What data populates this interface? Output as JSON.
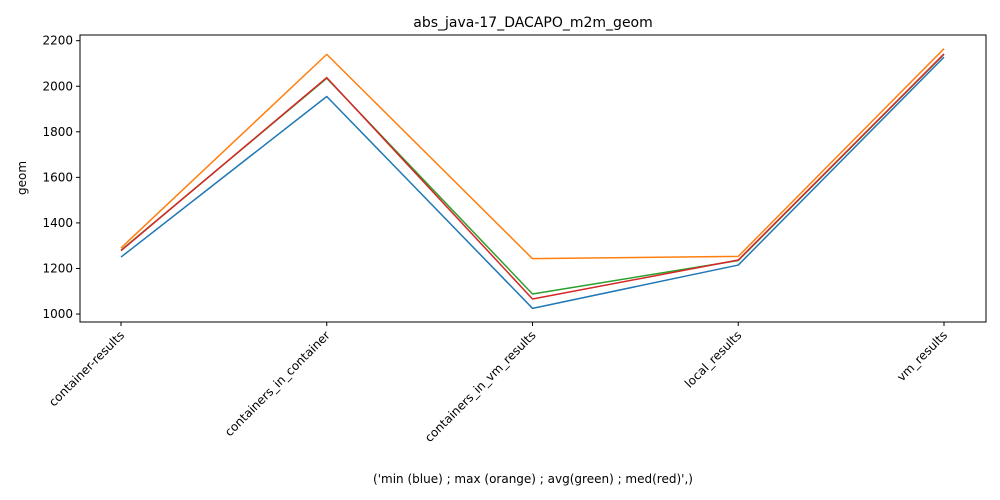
{
  "chart_data": {
    "type": "line",
    "title": "abs_java-17_DACAPO_m2m_geom",
    "xlabel": "('min (blue) ; max (orange) ; avg(green) ; med(red)',)",
    "ylabel": "geom",
    "categories": [
      "container-results",
      "containers_in_container",
      "containers_in_vm_results",
      "local_results",
      "vm_results"
    ],
    "ylim": [
      965,
      2225
    ],
    "yticks": [
      1000,
      1200,
      1400,
      1600,
      1800,
      2000,
      2200
    ],
    "grid": false,
    "series": [
      {
        "color": "#1f77b4",
        "values": [
          1250,
          1955,
          1025,
          1215,
          2128
        ]
      },
      {
        "color": "#ff7f0e",
        "values": [
          1290,
          2140,
          1243,
          1253,
          2165
        ]
      },
      {
        "color": "#2ca02c",
        "values": [
          1280,
          2035,
          1088,
          1235,
          2140
        ]
      },
      {
        "color": "#d62728",
        "values": [
          1278,
          2038,
          1066,
          1237,
          2142
        ]
      }
    ]
  }
}
